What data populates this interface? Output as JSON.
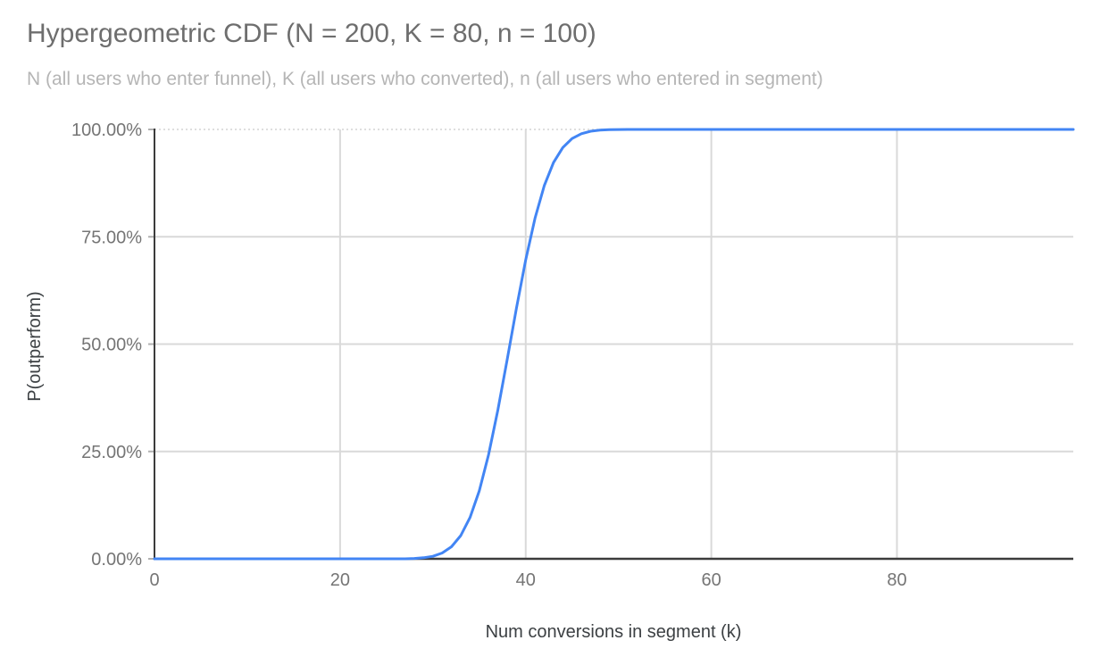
{
  "header": {
    "title": "Hypergeometric CDF (N = 200, K = 80, n = 100)",
    "subtitle": "N (all users who enter funnel), K (all users who converted), n (all users who entered in segment)"
  },
  "colors": {
    "series_line": "#4285f4",
    "gridline": "#d9d9d9",
    "top_gridline": "#d4d4d4",
    "axis_line": "#3c3c3c",
    "tick_mark": "#b0b0b0",
    "title_text": "#6e6e6e",
    "subtitle_text": "#b5b5b5",
    "tick_text": "#757575",
    "axis_title_text": "#3c4043"
  },
  "chart_data": {
    "type": "line",
    "title": "Hypergeometric CDF (N = 200, K = 80, n = 100)",
    "subtitle": "N (all users who enter funnel), K (all users who converted), n (all users who entered in segment)",
    "xlabel": "Num conversions in segment (k)",
    "ylabel": "P(outperform)",
    "xlim": [
      0,
      99
    ],
    "ylim_percent": [
      0,
      100
    ],
    "grid": true,
    "legend": "none",
    "x_ticks": [
      {
        "label": "0",
        "value": 0
      },
      {
        "label": "20",
        "value": 20
      },
      {
        "label": "40",
        "value": 40
      },
      {
        "label": "60",
        "value": 60
      },
      {
        "label": "80",
        "value": 80
      }
    ],
    "y_ticks": [
      {
        "label": "100.00%",
        "value": 100
      },
      {
        "label": "75.00%",
        "value": 75
      },
      {
        "label": "50.00%",
        "value": 50
      },
      {
        "label": "25.00%",
        "value": 25
      },
      {
        "label": "0.00%",
        "value": 0
      }
    ],
    "series": [
      {
        "name": "P(outperform)",
        "x": [
          0,
          1,
          2,
          3,
          4,
          5,
          6,
          7,
          8,
          9,
          10,
          11,
          12,
          13,
          14,
          15,
          16,
          17,
          18,
          19,
          20,
          21,
          22,
          23,
          24,
          25,
          26,
          27,
          28,
          29,
          30,
          31,
          32,
          33,
          34,
          35,
          36,
          37,
          38,
          39,
          40,
          41,
          42,
          43,
          44,
          45,
          46,
          47,
          48,
          49,
          50,
          51,
          52,
          53,
          54,
          55,
          56,
          57,
          58,
          59,
          60,
          61,
          62,
          63,
          64,
          65,
          66,
          67,
          68,
          69,
          70,
          71,
          72,
          73,
          74,
          75,
          76,
          77,
          78,
          79,
          80,
          81,
          82,
          83,
          84,
          85,
          86,
          87,
          88,
          89,
          90,
          91,
          92,
          93,
          94,
          95,
          96,
          97,
          98,
          99
        ],
        "y_percent": [
          0,
          0,
          0,
          0,
          0,
          0,
          0,
          0,
          0,
          0,
          0,
          0,
          0,
          0,
          0,
          0,
          0,
          0,
          0,
          0,
          0,
          0,
          0,
          0,
          0,
          0,
          0,
          0,
          0.09,
          0.24,
          0.59,
          1.35,
          2.81,
          5.41,
          9.63,
          15.87,
          24.29,
          34.68,
          46.38,
          58.4,
          69.67,
          79.33,
          86.88,
          92.28,
          95.79,
          97.88,
          99.01,
          99.58,
          99.84,
          99.94,
          99.98,
          100,
          100,
          100,
          100,
          100,
          100,
          100,
          100,
          100,
          100,
          100,
          100,
          100,
          100,
          100,
          100,
          100,
          100,
          100,
          100,
          100,
          100,
          100,
          100,
          100,
          100,
          100,
          100,
          100,
          100,
          100,
          100,
          100,
          100,
          100,
          100,
          100,
          100,
          100,
          100,
          100,
          100,
          100,
          100,
          100,
          100,
          100,
          100,
          100
        ]
      }
    ]
  }
}
